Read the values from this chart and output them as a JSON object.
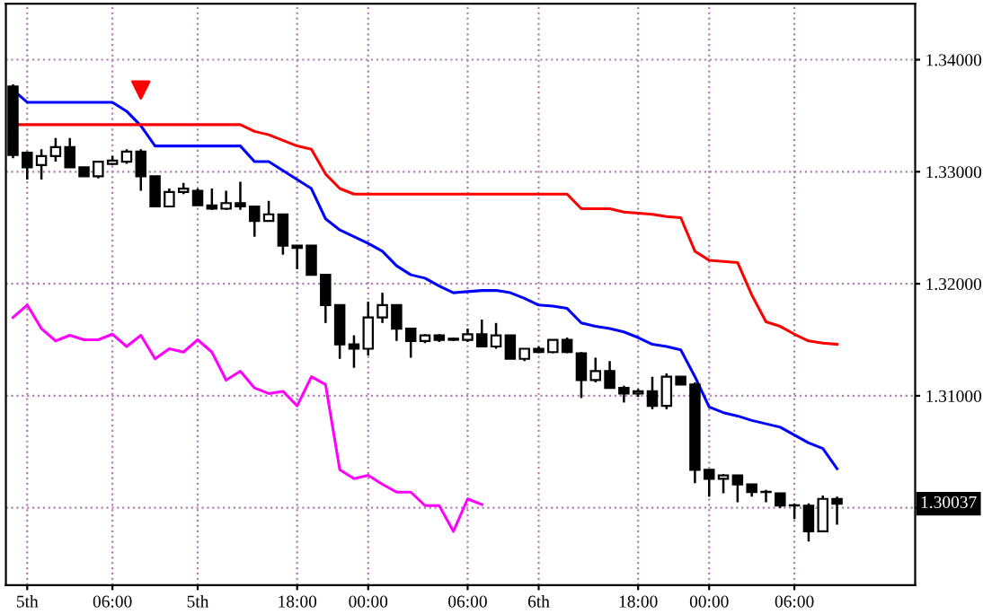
{
  "chart_data": {
    "type": "candlestick",
    "categories": [
      null,
      "5th",
      null,
      null,
      null,
      null,
      null,
      "06:00",
      null,
      null,
      null,
      null,
      null,
      "5th",
      null,
      null,
      null,
      null,
      null,
      null,
      "18:00",
      null,
      null,
      null,
      null,
      "00:00",
      null,
      null,
      null,
      null,
      null,
      null,
      "06:00",
      null,
      null,
      null,
      null,
      "6th",
      null,
      null,
      null,
      null,
      null,
      null,
      "18:00",
      null,
      null,
      null,
      null,
      "00:00",
      null,
      null,
      null,
      null,
      null,
      "06:00",
      null,
      null,
      null,
      null,
      null,
      null,
      null,
      null
    ],
    "ohlc": [
      [
        1.3376,
        1.3378,
        1.3312,
        1.3315
      ],
      [
        1.3317,
        1.3318,
        1.3293,
        1.3304
      ],
      [
        1.3306,
        1.332,
        1.3293,
        1.3314
      ],
      [
        1.3314,
        1.333,
        1.3309,
        1.3322
      ],
      [
        1.3322,
        1.333,
        1.3304,
        1.3304
      ],
      [
        1.3304,
        1.3304,
        1.3296,
        1.3296
      ],
      [
        1.3296,
        1.3309,
        1.3294,
        1.3309
      ],
      [
        1.3307,
        1.3314,
        1.3306,
        1.331
      ],
      [
        1.3309,
        1.332,
        1.3307,
        1.3318
      ],
      [
        1.3318,
        1.332,
        1.3283,
        1.3296
      ],
      [
        1.3296,
        1.3296,
        1.3269,
        1.3269
      ],
      [
        1.3269,
        1.3285,
        1.3269,
        1.3282
      ],
      [
        1.3282,
        1.329,
        1.328,
        1.3285
      ],
      [
        1.3283,
        1.3285,
        1.327,
        1.327
      ],
      [
        1.327,
        1.3285,
        1.3266,
        1.3267
      ],
      [
        1.3267,
        1.3283,
        1.3266,
        1.3272
      ],
      [
        1.3272,
        1.3291,
        1.3266,
        1.3269
      ],
      [
        1.3269,
        1.3269,
        1.3242,
        1.3256
      ],
      [
        1.3256,
        1.3274,
        1.3256,
        1.3262
      ],
      [
        1.3262,
        1.3262,
        1.3226,
        1.3234
      ],
      [
        1.3234,
        1.3234,
        1.3213,
        1.3232
      ],
      [
        1.3234,
        1.3234,
        1.3208,
        1.3208
      ],
      [
        1.3208,
        1.3208,
        1.3165,
        1.3181
      ],
      [
        1.3181,
        1.3181,
        1.3133,
        1.3146
      ],
      [
        1.3146,
        1.3154,
        1.3125,
        1.3142
      ],
      [
        1.3142,
        1.3184,
        1.3136,
        1.317
      ],
      [
        1.317,
        1.3192,
        1.3165,
        1.3181
      ],
      [
        1.3181,
        1.3181,
        1.3149,
        1.316
      ],
      [
        1.316,
        1.316,
        1.3134,
        1.3149
      ],
      [
        1.3149,
        1.3155,
        1.3147,
        1.3154
      ],
      [
        1.3154,
        1.3155,
        1.3148,
        1.315
      ],
      [
        1.3151,
        1.3152,
        1.3149,
        1.315
      ],
      [
        1.315,
        1.316,
        1.3148,
        1.3155
      ],
      [
        1.3155,
        1.3168,
        1.3144,
        1.3144
      ],
      [
        1.3144,
        1.3165,
        1.3142,
        1.3154
      ],
      [
        1.3154,
        1.3154,
        1.3133,
        1.3133
      ],
      [
        1.3133,
        1.3142,
        1.3131,
        1.3142
      ],
      [
        1.3142,
        1.3144,
        1.3138,
        1.3139
      ],
      [
        1.3139,
        1.315,
        1.3138,
        1.315
      ],
      [
        1.315,
        1.3152,
        1.3138,
        1.3139
      ],
      [
        1.3138,
        1.3139,
        1.3098,
        1.3114
      ],
      [
        1.3114,
        1.3134,
        1.3112,
        1.3122
      ],
      [
        1.3122,
        1.3131,
        1.3107,
        1.3107
      ],
      [
        1.3107,
        1.3109,
        1.3094,
        1.3102
      ],
      [
        1.3102,
        1.3106,
        1.3099,
        1.3104
      ],
      [
        1.3104,
        1.3117,
        1.3088,
        1.3091
      ],
      [
        1.3091,
        1.312,
        1.3088,
        1.3117
      ],
      [
        1.3117,
        1.3117,
        1.311,
        1.311
      ],
      [
        1.311,
        1.3112,
        1.3022,
        1.3034
      ],
      [
        1.3034,
        1.3034,
        1.301,
        1.3026
      ],
      [
        1.3026,
        1.303,
        1.3013,
        1.3029
      ],
      [
        1.3029,
        1.3029,
        1.3005,
        1.3021
      ],
      [
        1.3021,
        1.3021,
        1.301,
        1.3014
      ],
      [
        1.3014,
        1.3016,
        1.3005,
        1.3014
      ],
      [
        1.3013,
        1.3013,
        1.3,
        1.3002
      ],
      [
        1.3002,
        1.3004,
        1.299,
        1.3002
      ],
      [
        1.3002,
        1.3004,
        1.297,
        1.2979
      ],
      [
        1.2979,
        1.3011,
        1.2979,
        1.3008
      ],
      [
        1.3008,
        1.301,
        1.2985,
        1.30037
      ],
      null,
      null,
      null,
      null,
      null
    ],
    "series": [
      {
        "type": "line",
        "color": "#0000ff",
        "values": [
          1.3373,
          1.3362,
          1.3362,
          1.3362,
          1.3362,
          1.3362,
          1.3362,
          1.3362,
          1.3354,
          1.3341,
          1.3323,
          1.3323,
          1.3323,
          1.3323,
          1.3323,
          1.3323,
          1.3323,
          1.3309,
          1.3309,
          1.3301,
          1.3293,
          1.3285,
          1.3258,
          1.3248,
          1.3242,
          1.3236,
          1.3229,
          1.3216,
          1.3208,
          1.3205,
          1.3198,
          1.3192,
          1.3193,
          1.3194,
          1.3194,
          1.3192,
          1.3187,
          1.3181,
          1.318,
          1.3178,
          1.3165,
          1.3162,
          1.316,
          1.3157,
          1.3152,
          1.3146,
          1.3144,
          1.3141,
          1.3117,
          1.309,
          1.3085,
          1.3082,
          1.3078,
          1.3075,
          1.3072,
          1.3065,
          1.3058,
          1.3053,
          1.3035,
          null,
          null,
          null,
          null,
          null
        ]
      },
      {
        "type": "line",
        "color": "#ff0000",
        "values": [
          1.3342,
          1.3342,
          1.3342,
          1.3342,
          1.3342,
          1.3342,
          1.3342,
          1.3342,
          1.3342,
          1.3342,
          1.3342,
          1.3342,
          1.3342,
          1.3342,
          1.3342,
          1.3342,
          1.3342,
          1.3336,
          1.3333,
          1.3328,
          1.3323,
          1.332,
          1.3298,
          1.3285,
          1.328,
          1.328,
          1.328,
          1.328,
          1.328,
          1.328,
          1.328,
          1.328,
          1.328,
          1.328,
          1.328,
          1.328,
          1.328,
          1.328,
          1.328,
          1.328,
          1.3267,
          1.3267,
          1.3267,
          1.3264,
          1.3263,
          1.3262,
          1.326,
          1.3259,
          1.3229,
          1.3221,
          1.322,
          1.3219,
          1.319,
          1.3166,
          1.3162,
          1.3155,
          1.3149,
          1.3147,
          1.3146,
          null,
          null,
          null,
          null,
          null
        ]
      },
      {
        "type": "line",
        "color": "#ff00ff",
        "values": [
          1.317,
          1.3181,
          1.316,
          1.3149,
          1.3154,
          1.315,
          1.315,
          1.3155,
          1.3144,
          1.3154,
          1.3133,
          1.3142,
          1.3139,
          1.315,
          1.3139,
          1.3114,
          1.3122,
          1.3107,
          1.3102,
          1.3104,
          1.3091,
          1.3117,
          1.311,
          1.3034,
          1.3026,
          1.3029,
          1.3021,
          1.3014,
          1.3014,
          1.3002,
          1.3002,
          1.2979,
          1.3008,
          1.3003,
          null,
          null,
          null,
          null,
          null,
          null,
          null,
          null,
          null,
          null,
          null,
          null,
          null,
          null,
          null,
          null,
          null,
          null,
          null,
          null,
          null,
          null,
          null,
          null,
          null,
          null,
          null,
          null,
          null,
          null
        ]
      },
      {
        "type": "scatter",
        "color": "#ff0000",
        "marker": "triangle",
        "values": [
          null,
          null,
          null,
          null,
          null,
          null,
          null,
          null,
          null,
          1.3373,
          null,
          null,
          null,
          null,
          null,
          null,
          null,
          null,
          null,
          null,
          null,
          null,
          null,
          null,
          null,
          null,
          null,
          null,
          null,
          null,
          null,
          null,
          null,
          null,
          null,
          null,
          null,
          null,
          null,
          null,
          null,
          null,
          null,
          null,
          null,
          null,
          null,
          null,
          null,
          null,
          null,
          null,
          null,
          null,
          null,
          null,
          null,
          null,
          null,
          null,
          null,
          null,
          null,
          null
        ]
      }
    ],
    "ylim": [
      1.2931,
      1.345
    ],
    "yticks": [
      {
        "value": 1.3,
        "label": null
      },
      {
        "value": 1.31,
        "label": "1.31000"
      },
      {
        "value": 1.32,
        "label": "1.32000"
      },
      {
        "value": 1.33,
        "label": "1.33000"
      },
      {
        "value": 1.34,
        "label": "1.34000"
      }
    ],
    "grid": true,
    "annotations": [
      {
        "text": "1.30037",
        "y": 1.30037
      }
    ]
  }
}
